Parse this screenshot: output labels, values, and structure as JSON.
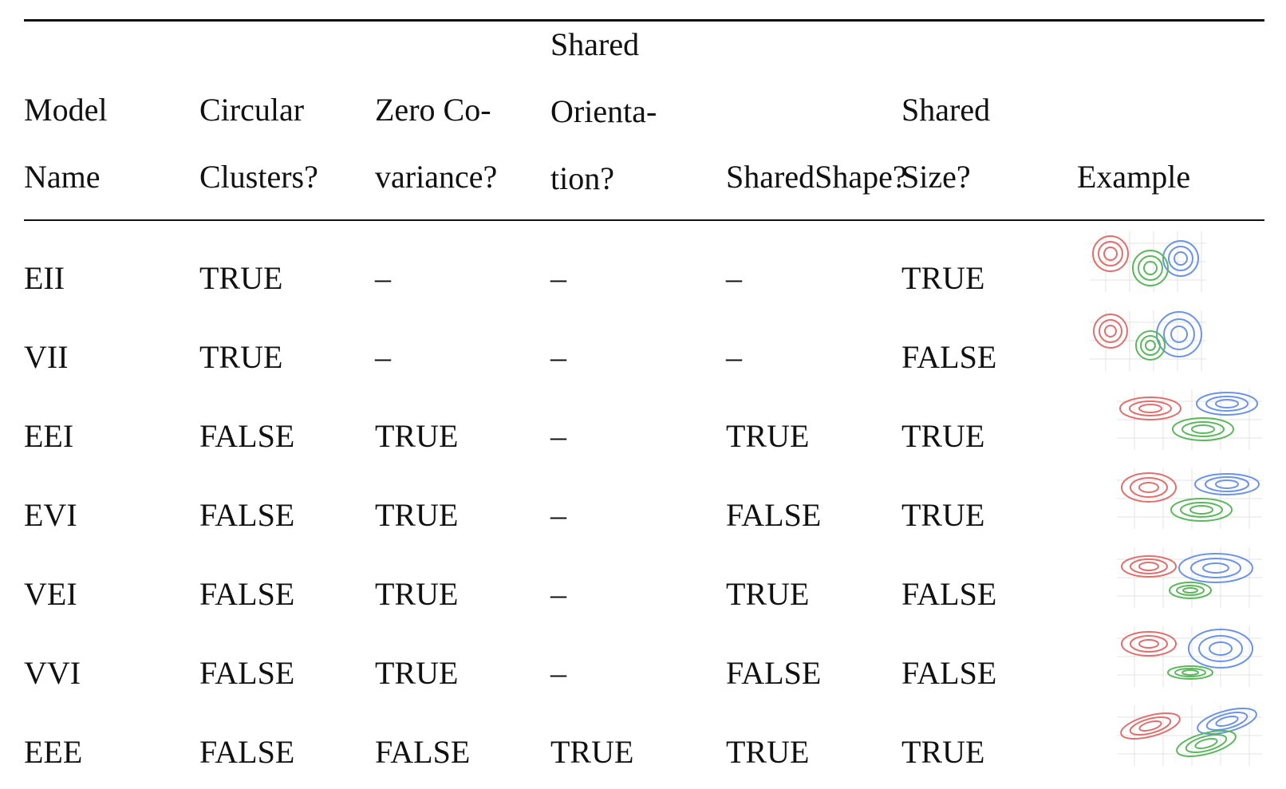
{
  "table": {
    "headers": [
      {
        "key": "model",
        "lines": [
          "Model",
          "Name"
        ]
      },
      {
        "key": "circ",
        "lines": [
          "Circular",
          "Clusters?"
        ]
      },
      {
        "key": "zero",
        "lines": [
          "Zero Co-",
          "variance?"
        ]
      },
      {
        "key": "orient",
        "lines": [
          "Shared",
          "Orienta-",
          "tion?"
        ]
      },
      {
        "key": "shape",
        "lines": [
          "SharedShape?"
        ]
      },
      {
        "key": "size",
        "lines": [
          "Shared",
          "Size?"
        ]
      },
      {
        "key": "example",
        "lines": [
          "Example"
        ]
      }
    ],
    "rows": [
      {
        "name": "EII",
        "circular": "TRUE",
        "zero_cov": "–",
        "orientation": "–",
        "shape": "–",
        "size": "TRUE"
      },
      {
        "name": "VII",
        "circular": "TRUE",
        "zero_cov": "–",
        "orientation": "–",
        "shape": "–",
        "size": "FALSE"
      },
      {
        "name": "EEI",
        "circular": "FALSE",
        "zero_cov": "TRUE",
        "orientation": "–",
        "shape": "TRUE",
        "size": "TRUE"
      },
      {
        "name": "EVI",
        "circular": "FALSE",
        "zero_cov": "TRUE",
        "orientation": "–",
        "shape": "FALSE",
        "size": "TRUE"
      },
      {
        "name": "VEI",
        "circular": "FALSE",
        "zero_cov": "TRUE",
        "orientation": "–",
        "shape": "TRUE",
        "size": "FALSE"
      },
      {
        "name": "VVI",
        "circular": "FALSE",
        "zero_cov": "TRUE",
        "orientation": "–",
        "shape": "FALSE",
        "size": "FALSE"
      },
      {
        "name": "EEE",
        "circular": "FALSE",
        "zero_cov": "FALSE",
        "orientation": "TRUE",
        "shape": "TRUE",
        "size": "TRUE"
      }
    ],
    "example_colors": {
      "red": "#e0706e",
      "green": "#5cb85c",
      "blue": "#6b93e8",
      "grid": "#e3e3e3"
    }
  }
}
